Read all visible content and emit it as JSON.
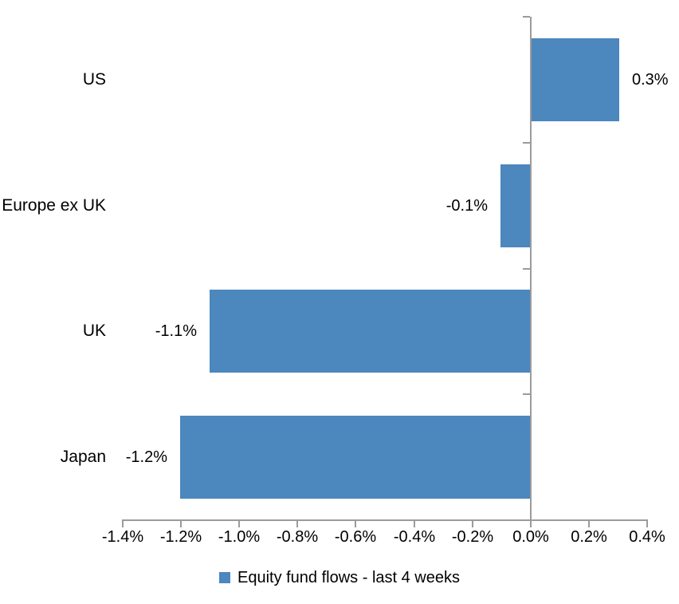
{
  "chart_data": {
    "type": "bar",
    "orientation": "horizontal",
    "title": "",
    "categories": [
      "US",
      "Europe ex UK",
      "UK",
      "Japan"
    ],
    "values": [
      0.3,
      -0.1,
      -1.1,
      -1.2
    ],
    "data_labels": [
      "0.3%",
      "-0.1%",
      "-1.1%",
      "-1.2%"
    ],
    "series_name": "Equity fund flows - last 4 weeks",
    "xlim": [
      -1.4,
      0.4
    ],
    "x_tick_step": 0.2,
    "x_tick_labels": [
      "-1.4%",
      "-1.2%",
      "-1.0%",
      "-0.8%",
      "-0.6%",
      "-0.4%",
      "-0.2%",
      "0.0%",
      "0.2%",
      "0.4%"
    ],
    "grid": false,
    "legend_position": "bottom",
    "data_label_position": "outside-end",
    "colors": {
      "bar": "#4C87BD",
      "axis": "#9B9B9B",
      "text": "#000000"
    }
  },
  "legend": {
    "marker_icon": "square-icon",
    "label": "Equity fund flows - last 4 weeks"
  }
}
